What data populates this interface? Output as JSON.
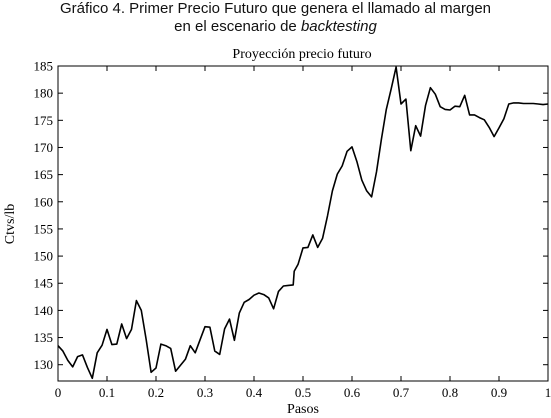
{
  "figure": {
    "caption_line1": "Gráfico 4. Primer Precio Futuro que genera el llamado al margen",
    "caption_line2_prefix": "en el escenario de ",
    "caption_line2_italic": "backtesting"
  },
  "chart_data": {
    "type": "line",
    "title": "Proyección precio futuro",
    "xlabel": "Pasos",
    "ylabel": "Ctvs/lb",
    "xlim": [
      0,
      1
    ],
    "ylim": [
      127,
      185
    ],
    "x_ticks": [
      0,
      0.1,
      0.2,
      0.3,
      0.4,
      0.5,
      0.6,
      0.7,
      0.8,
      0.9,
      1
    ],
    "x_tick_labels": [
      "0",
      "0.1",
      "0.2",
      "0.3",
      "0.4",
      "0.5",
      "0.6",
      "0.7",
      "0.8",
      "0.9",
      "1"
    ],
    "y_ticks": [
      130,
      135,
      140,
      145,
      150,
      155,
      160,
      165,
      170,
      175,
      180,
      185
    ],
    "y_tick_labels": [
      "130",
      "135",
      "140",
      "145",
      "150",
      "155",
      "160",
      "165",
      "170",
      "175",
      "180",
      "185"
    ],
    "grid": false,
    "line_color": "#000000",
    "series": [
      {
        "x": [
          0.0,
          0.01,
          0.02,
          0.03,
          0.04,
          0.05,
          0.06,
          0.07,
          0.08,
          0.09,
          0.1,
          0.11,
          0.12,
          0.13,
          0.14,
          0.15,
          0.16,
          0.17,
          0.18,
          0.19,
          0.2,
          0.21,
          0.22,
          0.23,
          0.24,
          0.25,
          0.26,
          0.27,
          0.28,
          0.29,
          0.3,
          0.31,
          0.32,
          0.33,
          0.34,
          0.35,
          0.36,
          0.37,
          0.38,
          0.39,
          0.4,
          0.41,
          0.42,
          0.43,
          0.44,
          0.45,
          0.46,
          0.47,
          0.48,
          0.482,
          0.49,
          0.5,
          0.51,
          0.52,
          0.53,
          0.54,
          0.55,
          0.56,
          0.57,
          0.58,
          0.59,
          0.6,
          0.61,
          0.62,
          0.63,
          0.64,
          0.65,
          0.66,
          0.67,
          0.68,
          0.69,
          0.7,
          0.71,
          0.72,
          0.73,
          0.74,
          0.75,
          0.76,
          0.77,
          0.78,
          0.79,
          0.8,
          0.81,
          0.82,
          0.83,
          0.84,
          0.85,
          0.86,
          0.87,
          0.88,
          0.89,
          0.9,
          0.91,
          0.92,
          0.93,
          0.94,
          0.95,
          0.96,
          0.97,
          0.98,
          0.99,
          1.0
        ],
        "y": [
          133.5,
          132.5,
          130.8,
          129.6,
          131.5,
          131.8,
          129.5,
          127.5,
          132.2,
          133.6,
          136.5,
          133.7,
          133.8,
          137.5,
          134.8,
          136.5,
          141.8,
          140.0,
          134.6,
          128.6,
          129.4,
          133.8,
          133.5,
          133.0,
          128.8,
          129.9,
          131.0,
          133.5,
          132.2,
          134.6,
          137.0,
          136.9,
          132.5,
          131.9,
          136.6,
          138.4,
          134.5,
          139.5,
          141.5,
          142.0,
          142.8,
          143.2,
          142.9,
          142.3,
          140.3,
          143.5,
          144.5,
          144.6,
          144.7,
          147.2,
          148.5,
          151.5,
          151.6,
          153.9,
          151.6,
          153.3,
          157.4,
          162.0,
          165.1,
          166.6,
          169.3,
          170.1,
          167.4,
          164.0,
          162.0,
          160.9,
          165.5,
          171.5,
          177.0,
          180.8,
          184.8,
          178.0,
          178.9,
          169.4,
          174.0,
          172.1,
          177.7,
          181.0,
          179.8,
          177.5,
          177.0,
          176.9,
          177.6,
          177.5,
          179.6,
          176.0,
          176.0,
          175.5,
          175.1,
          173.7,
          172.0,
          173.6,
          175.3,
          178.0,
          178.2,
          178.2,
          178.1,
          178.1,
          178.1,
          178.0,
          177.9,
          178.0
        ]
      }
    ]
  }
}
